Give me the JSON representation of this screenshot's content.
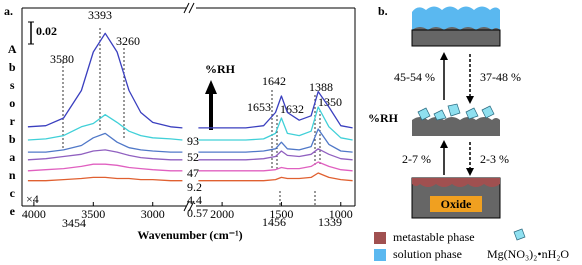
{
  "chart_data": {
    "type": "line",
    "title": "a.",
    "xlabel": "Wavenumber (cm⁻¹)",
    "ylabel": "Absorbance",
    "xlim": [
      [
        4100,
        2720
      ],
      [
        2220,
        880
      ]
    ],
    "ylim": [
      0,
      0.18
    ],
    "scale_bar": 0.02,
    "xticks": [
      4000,
      3500,
      3000,
      2000,
      1500,
      1000
    ],
    "legend_title": "%RH",
    "x": [
      4050,
      3900,
      3750,
      3600,
      3500,
      3400,
      3300,
      3200,
      3100,
      3000,
      2850,
      2750,
      2200,
      2000,
      1800,
      1650,
      1550,
      1500,
      1450,
      1350,
      1250,
      1190,
      1100,
      1000,
      900
    ],
    "series": [
      {
        "name": "93",
        "color": "#3a3fbf",
        "values": [
          0.072,
          0.073,
          0.08,
          0.105,
          0.14,
          0.157,
          0.14,
          0.105,
          0.085,
          0.076,
          0.072,
          0.071,
          0.071,
          0.071,
          0.071,
          0.073,
          0.085,
          0.1,
          0.085,
          0.078,
          0.082,
          0.104,
          0.09,
          0.073,
          0.071
        ]
      },
      {
        "name": "52",
        "color": "#40d0d8",
        "values": [
          0.06,
          0.061,
          0.064,
          0.072,
          0.075,
          0.083,
          0.076,
          0.068,
          0.064,
          0.062,
          0.061,
          0.06,
          0.06,
          0.06,
          0.06,
          0.061,
          0.066,
          0.08,
          0.066,
          0.064,
          0.068,
          0.09,
          0.072,
          0.062,
          0.06
        ]
      },
      {
        "name": "47",
        "color": "#5078c8",
        "values": [
          0.049,
          0.049,
          0.051,
          0.055,
          0.062,
          0.066,
          0.058,
          0.053,
          0.051,
          0.05,
          0.049,
          0.049,
          0.049,
          0.049,
          0.049,
          0.05,
          0.052,
          0.058,
          0.052,
          0.051,
          0.054,
          0.07,
          0.056,
          0.05,
          0.049
        ]
      },
      {
        "name": "9.2",
        "color": "#9060c0",
        "values": [
          0.042,
          0.043,
          0.045,
          0.047,
          0.05,
          0.051,
          0.049,
          0.046,
          0.044,
          0.043,
          0.042,
          0.042,
          0.042,
          0.042,
          0.042,
          0.043,
          0.045,
          0.05,
          0.046,
          0.045,
          0.047,
          0.052,
          0.047,
          0.043,
          0.042
        ]
      },
      {
        "name": "4.4",
        "color": "#e060c0",
        "values": [
          0.032,
          0.033,
          0.034,
          0.036,
          0.038,
          0.038,
          0.037,
          0.035,
          0.034,
          0.033,
          0.032,
          0.032,
          0.032,
          0.032,
          0.032,
          0.032,
          0.033,
          0.035,
          0.034,
          0.034,
          0.036,
          0.04,
          0.036,
          0.033,
          0.032
        ]
      },
      {
        "name": "0.57",
        "color": "#e06030",
        "values": [
          0.023,
          0.023,
          0.024,
          0.025,
          0.026,
          0.026,
          0.025,
          0.025,
          0.024,
          0.024,
          0.023,
          0.023,
          0.023,
          0.023,
          0.023,
          0.023,
          0.024,
          0.026,
          0.025,
          0.025,
          0.026,
          0.03,
          0.026,
          0.024,
          0.023
        ]
      }
    ],
    "annotations": [
      "3580",
      "3393",
      "3260",
      "1653",
      "1642",
      "1632",
      "1388",
      "1350",
      "3454",
      "1456",
      "1339",
      "×4"
    ]
  },
  "diagram": {
    "label": "b.",
    "axis_label": "%RH",
    "transitions": [
      "45-54 %",
      "37-48 %",
      "2-7 %",
      "2-3 %"
    ],
    "substrate": "Oxide",
    "legend": [
      "metastable phase",
      "solution phase",
      "Mg(NO₃)₂•nH₂O"
    ]
  }
}
